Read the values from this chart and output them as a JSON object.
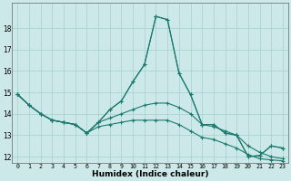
{
  "xlabel": "Humidex (Indice chaleur)",
  "xlim": [
    -0.5,
    23.5
  ],
  "ylim": [
    11.7,
    19.2
  ],
  "yticks": [
    12,
    13,
    14,
    15,
    16,
    17,
    18
  ],
  "bg_color": "#cce8e8",
  "grid_color": "#aad4d4",
  "line_color": "#1a7a6e",
  "lines": [
    [
      14.9,
      14.4,
      14.0,
      13.7,
      13.6,
      13.5,
      13.1,
      13.6,
      14.2,
      14.6,
      15.5,
      16.3,
      18.55,
      18.4,
      15.9,
      14.9,
      13.5,
      13.5,
      13.1,
      13.0,
      12.0,
      12.05,
      12.5,
      12.4
    ],
    [
      14.9,
      14.4,
      14.0,
      13.7,
      13.6,
      13.5,
      13.1,
      13.6,
      14.2,
      14.6,
      15.5,
      16.3,
      18.55,
      18.4,
      15.9,
      14.9,
      13.5,
      13.5,
      13.1,
      13.0,
      12.0,
      12.05,
      12.5,
      12.4
    ],
    [
      14.9,
      14.4,
      14.0,
      13.7,
      13.6,
      13.5,
      13.1,
      13.6,
      13.8,
      14.0,
      14.2,
      14.4,
      14.5,
      14.5,
      14.3,
      14.0,
      13.5,
      13.4,
      13.2,
      13.0,
      12.5,
      12.2,
      12.0,
      11.9
    ],
    [
      14.9,
      14.4,
      14.0,
      13.7,
      13.6,
      13.5,
      13.1,
      13.4,
      13.5,
      13.6,
      13.7,
      13.7,
      13.7,
      13.7,
      13.5,
      13.2,
      12.9,
      12.8,
      12.6,
      12.4,
      12.1,
      11.9,
      11.85,
      11.8
    ]
  ]
}
